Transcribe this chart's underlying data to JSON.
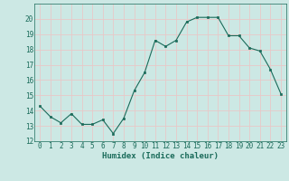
{
  "x": [
    0,
    1,
    2,
    3,
    4,
    5,
    6,
    7,
    8,
    9,
    10,
    11,
    12,
    13,
    14,
    15,
    16,
    17,
    18,
    19,
    20,
    21,
    22,
    23
  ],
  "y": [
    14.3,
    13.6,
    13.2,
    13.8,
    13.1,
    13.1,
    13.4,
    12.5,
    13.5,
    15.3,
    16.5,
    18.6,
    18.2,
    18.6,
    19.8,
    20.1,
    20.1,
    20.1,
    18.9,
    18.9,
    18.1,
    17.9,
    16.7,
    15.1
  ],
  "xlabel": "Humidex (Indice chaleur)",
  "ylim": [
    12,
    21
  ],
  "xlim": [
    -0.5,
    23.5
  ],
  "yticks": [
    12,
    13,
    14,
    15,
    16,
    17,
    18,
    19,
    20
  ],
  "xticks": [
    0,
    1,
    2,
    3,
    4,
    5,
    6,
    7,
    8,
    9,
    10,
    11,
    12,
    13,
    14,
    15,
    16,
    17,
    18,
    19,
    20,
    21,
    22,
    23
  ],
  "line_color": "#1a6b5a",
  "marker_color": "#1a6b5a",
  "bg_color": "#cce8e4",
  "grid_color": "#e8c8c8",
  "axis_label_color": "#1a6b5a",
  "tick_color": "#1a6b5a",
  "xlabel_fontsize": 6.5,
  "tick_fontsize": 5.5
}
